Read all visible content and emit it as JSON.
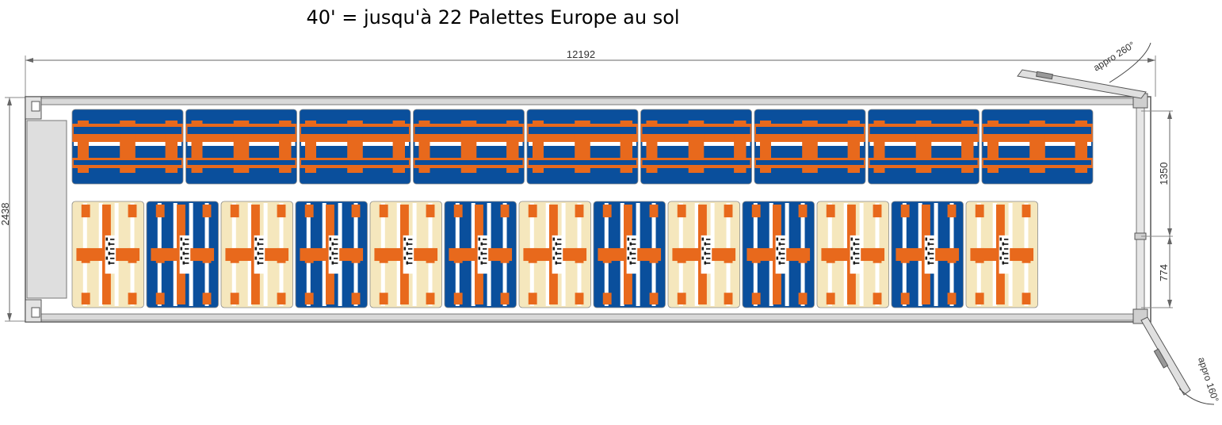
{
  "title": "40' = jusqu'à 22 Palettes Europe au sol",
  "dimensions": {
    "length": "12192",
    "width": "2438",
    "door_offset_top": "1350",
    "door_offset_bottom": "774"
  },
  "door_angles": {
    "top": "appro 260°",
    "bottom": "appro 160°"
  },
  "colors": {
    "blue": "#0a4f9c",
    "orange": "#e8691c",
    "beige": "#f5e7bd",
    "wall": "#d9d9d9",
    "outline": "#555555"
  },
  "pallets": {
    "lengthwise_row_count": 9,
    "crosswise_row": [
      "beige",
      "blue",
      "beige",
      "blue",
      "beige",
      "blue",
      "beige",
      "blue",
      "beige",
      "blue",
      "beige",
      "blue",
      "beige"
    ]
  }
}
